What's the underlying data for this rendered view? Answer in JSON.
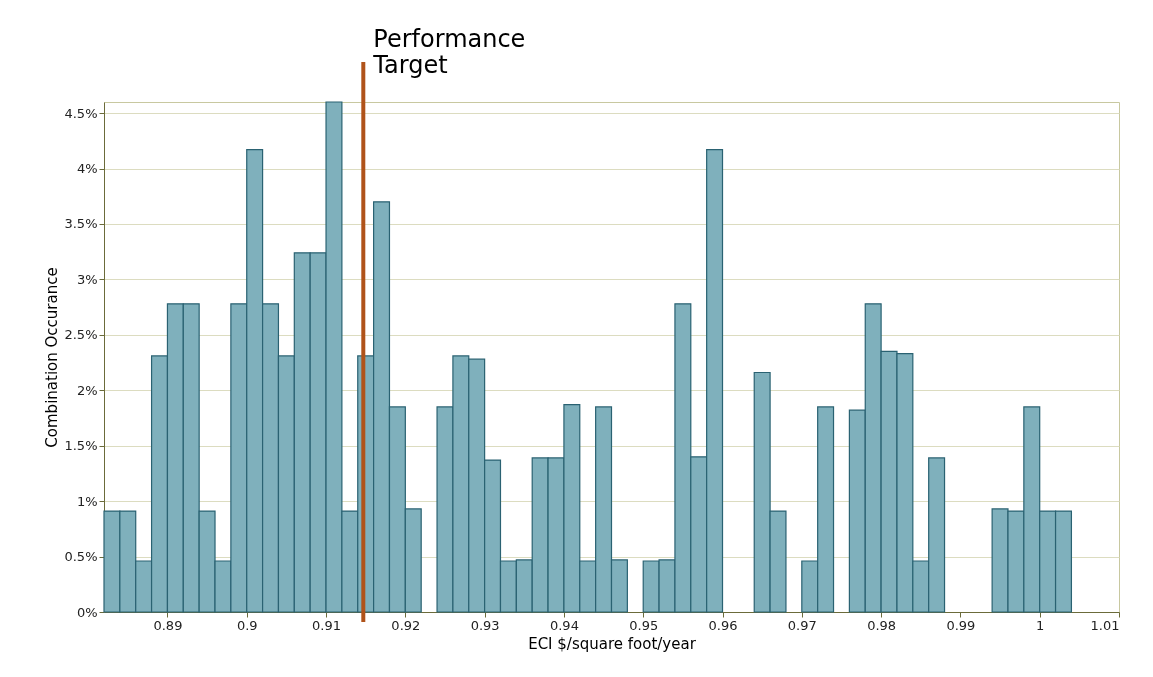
{
  "chart_data": {
    "type": "histogram",
    "xlabel": "ECI $/square foot/year",
    "ylabel": "Combination Occurance",
    "bins": [
      0.882,
      0.884,
      0.886,
      0.888,
      0.89,
      0.892,
      0.894,
      0.896,
      0.898,
      0.9,
      0.902,
      0.904,
      0.906,
      0.908,
      0.91,
      0.912,
      0.914,
      0.916,
      0.918,
      0.92,
      0.922,
      0.924,
      0.926,
      0.928,
      0.93,
      0.932,
      0.934,
      0.936,
      0.938,
      0.94,
      0.942,
      0.944,
      0.946,
      0.948,
      0.95,
      0.952,
      0.954,
      0.956,
      0.958,
      0.96,
      0.962,
      0.964,
      0.966,
      0.968,
      0.97,
      0.972,
      0.974,
      0.976,
      0.978,
      0.98,
      0.982,
      0.984,
      0.986,
      0.988,
      0.99,
      0.992,
      0.994,
      0.996,
      0.998,
      1.0,
      1.002,
      1.004
    ],
    "values": [
      0.91,
      0.91,
      0.46,
      2.31,
      2.78,
      2.78,
      0.91,
      0.46,
      2.78,
      4.17,
      2.78,
      2.31,
      3.24,
      3.24,
      4.6,
      0.91,
      2.31,
      3.7,
      1.85,
      0.93,
      0,
      1.85,
      2.31,
      2.28,
      1.37,
      0.46,
      0.47,
      1.39,
      1.39,
      1.87,
      0.46,
      1.85,
      0.47,
      null,
      0.46,
      0.47,
      2.78,
      1.4,
      4.17,
      null,
      null,
      2.16,
      0.91,
      null,
      0.46,
      1.85,
      null,
      1.82,
      2.78,
      2.35,
      2.33,
      0.46,
      1.39,
      0,
      0,
      0,
      0.93,
      0.91,
      1.85,
      0.91,
      0.91
    ],
    "color": "#7fb0bc",
    "xlim": [
      0.882,
      1.01
    ],
    "xticks": [
      0.89,
      0.9,
      0.91,
      0.92,
      0.93,
      0.94,
      0.95,
      0.96,
      0.97,
      0.98,
      0.99,
      1,
      1.01
    ],
    "ylim": [
      0,
      4.6
    ],
    "yticks": [
      {
        "value": 0,
        "label": "0%"
      },
      {
        "value": 0.5,
        "label": "0.5%"
      },
      {
        "value": 1,
        "label": "1%"
      },
      {
        "value": 1.5,
        "label": "1.5%"
      },
      {
        "value": 2,
        "label": "2%"
      },
      {
        "value": 2.5,
        "label": "2.5%"
      },
      {
        "value": 3,
        "label": "3%"
      },
      {
        "value": 3.5,
        "label": "3.5%"
      },
      {
        "value": 4,
        "label": "4%"
      },
      {
        "value": 4.5,
        "label": "4.5%"
      }
    ],
    "grid": "y",
    "ref_lines": [
      {
        "axis": "x",
        "value": 0.9147,
        "label": "Performance Target",
        "color": "#b0531a"
      }
    ]
  }
}
